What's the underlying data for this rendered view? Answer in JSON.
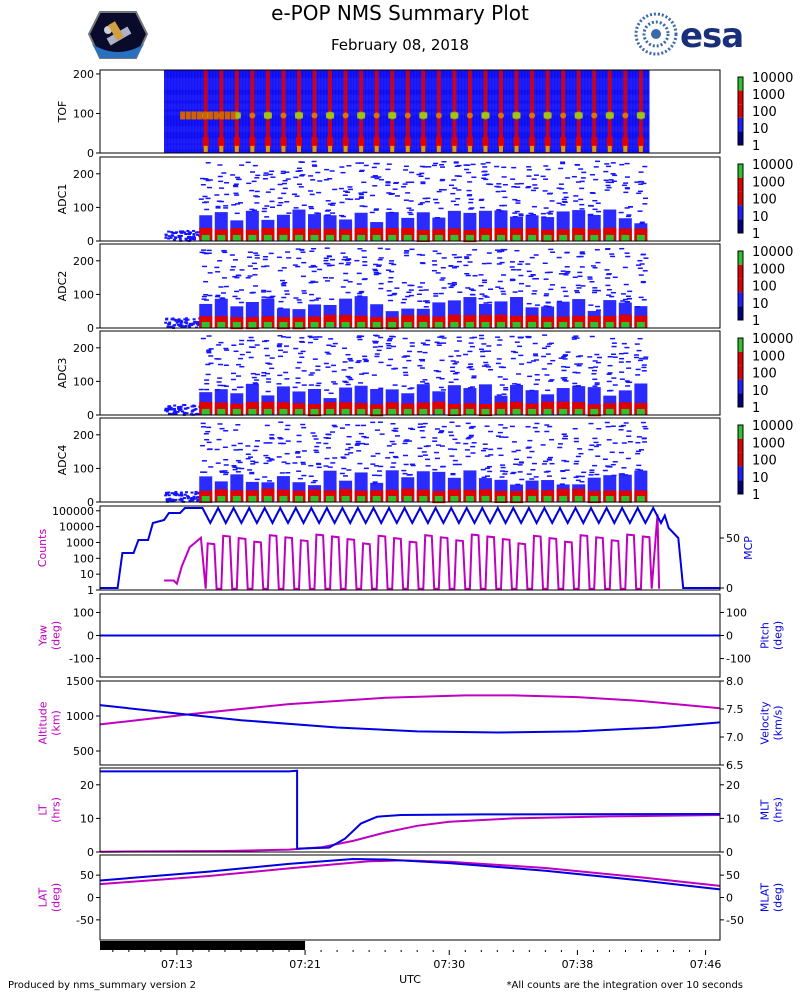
{
  "header": {
    "title": "e-POP NMS Summary Plot",
    "date": "February 08, 2018",
    "left_logo": "mission-patch",
    "right_logo": "esa",
    "right_logo_text": "esa"
  },
  "footer": {
    "left": "Produced by nms_summary version 2",
    "right": "*All counts are the integration over 10 seconds",
    "xlabel": "UTC"
  },
  "colors": {
    "magenta": "#c000c0",
    "blue": "#0000e0",
    "spec_blue": "#1414ff",
    "spec_red": "#e00000",
    "spec_green": "#30c030"
  },
  "colorbar": {
    "labels": [
      "10000",
      "1000",
      "100",
      "10",
      "1"
    ],
    "colors": [
      "#30c030",
      "#e00000",
      "#e00000",
      "#2020ff",
      "#000080"
    ]
  },
  "chart_data": {
    "type": "multi-panel time series",
    "x": {
      "label": "UTC",
      "ticks": [
        "07:13",
        "07:21",
        "07:30",
        "07:38",
        "07:46"
      ],
      "tick_min": [
        13.0,
        21.0,
        30.0,
        38.0,
        46.0
      ],
      "range_min": [
        8.2,
        46.9
      ],
      "data_bar_min": [
        8.2,
        21.0
      ]
    },
    "spectrograms": [
      {
        "name": "TOF",
        "ylabel": "TOF",
        "ylim": [
          0,
          210
        ],
        "yticks": [
          "0",
          "100",
          "200"
        ],
        "yticks_val": [
          0,
          100,
          200
        ],
        "start_min": 12.2,
        "end_min": 42.5
      },
      {
        "name": "ADC1",
        "ylabel": "ADC1",
        "ylim": [
          0,
          250
        ],
        "yticks": [
          "0",
          "100",
          "200"
        ],
        "yticks_val": [
          0,
          100,
          200
        ],
        "start_min": 12.2,
        "end_min": 42.5
      },
      {
        "name": "ADC2",
        "ylabel": "ADC2",
        "ylim": [
          0,
          250
        ],
        "yticks": [
          "0",
          "100",
          "200"
        ],
        "yticks_val": [
          0,
          100,
          200
        ],
        "start_min": 12.2,
        "end_min": 42.5
      },
      {
        "name": "ADC3",
        "ylabel": "ADC3",
        "ylim": [
          0,
          250
        ],
        "yticks": [
          "0",
          "100",
          "200"
        ],
        "yticks_val": [
          0,
          100,
          200
        ],
        "start_min": 12.2,
        "end_min": 42.5
      },
      {
        "name": "ADC4",
        "ylabel": "ADC4",
        "ylim": [
          0,
          250
        ],
        "yticks": [
          "0",
          "100",
          "200"
        ],
        "yticks_val": [
          0,
          100,
          200
        ],
        "start_min": 12.2,
        "end_min": 42.5
      }
    ],
    "line_panels": [
      {
        "name": "counts-mcp",
        "left_label": "Counts",
        "right_label": "MCP",
        "left_scale": "log",
        "left_lim": [
          1,
          200000
        ],
        "left_ticks": [
          "1",
          "10",
          "100",
          "1000",
          "10000",
          "100000"
        ],
        "left_ticks_val": [
          1,
          10,
          100,
          1000,
          10000,
          100000
        ],
        "right_lim": [
          -2,
          82
        ],
        "right_ticks": [
          "0",
          "50"
        ],
        "right_ticks_val": [
          0,
          50
        ],
        "mcp_series": [
          [
            8.2,
            0
          ],
          [
            9.3,
            0
          ],
          [
            9.6,
            35
          ],
          [
            10.3,
            35
          ],
          [
            10.6,
            48
          ],
          [
            11.2,
            48
          ],
          [
            11.5,
            65
          ],
          [
            12.2,
            68
          ],
          [
            12.5,
            75
          ],
          [
            13.2,
            75
          ],
          [
            13.5,
            80
          ],
          [
            14.4,
            80
          ],
          [
            14.6,
            65
          ],
          [
            14.9,
            78
          ],
          [
            15.2,
            78
          ],
          [
            43.5,
            78
          ],
          [
            43.7,
            60
          ],
          [
            44.3,
            50
          ],
          [
            44.6,
            0
          ],
          [
            46.9,
            0
          ]
        ],
        "mcp_osc": {
          "start": 14.6,
          "end": 43.5,
          "period": 0.97,
          "high": 80,
          "low": 65
        },
        "counts_osc": {
          "start": 14.8,
          "end": 42.8,
          "period": 0.97,
          "high": 2500,
          "low": 1.2
        },
        "counts_pre": [
          [
            12.2,
            4
          ],
          [
            12.8,
            4
          ],
          [
            13.0,
            2.5
          ],
          [
            13.3,
            30
          ],
          [
            13.8,
            500
          ],
          [
            14.5,
            2000
          ]
        ]
      },
      {
        "name": "yaw-pitch",
        "left_label": "Yaw (deg)",
        "right_label": "Pitch (deg)",
        "left_lim": [
          -180,
          180
        ],
        "left_ticks": [
          "-100",
          "0",
          "100"
        ],
        "left_ticks_val": [
          -100,
          0,
          100
        ],
        "right_lim": [
          -180,
          180
        ],
        "right_ticks": [
          "-100",
          "0",
          "100"
        ],
        "right_ticks_val": [
          -100,
          0,
          100
        ],
        "yaw": [
          [
            8.2,
            0
          ],
          [
            46.9,
            0
          ]
        ],
        "pitch": [
          [
            8.2,
            0
          ],
          [
            46.9,
            0
          ]
        ]
      },
      {
        "name": "altitude-velocity",
        "left_label": "Altitude (km)",
        "right_label": "Velocity (km/s)",
        "left_lim": [
          300,
          1500
        ],
        "left_ticks": [
          "500",
          "1000",
          "1500"
        ],
        "left_ticks_val": [
          500,
          1000,
          1500
        ],
        "right_lim": [
          6.5,
          8.0
        ],
        "right_ticks": [
          "6.5",
          "7.0",
          "7.5",
          "8.0"
        ],
        "right_ticks_val": [
          6.5,
          7.0,
          7.5,
          8.0
        ],
        "altitude": [
          [
            8.2,
            880
          ],
          [
            14,
            1030
          ],
          [
            20,
            1170
          ],
          [
            26,
            1260
          ],
          [
            31,
            1295
          ],
          [
            34,
            1295
          ],
          [
            38,
            1270
          ],
          [
            42,
            1215
          ],
          [
            46.9,
            1110
          ]
        ],
        "velocity": [
          [
            8.2,
            7.57
          ],
          [
            12,
            7.45
          ],
          [
            17,
            7.3
          ],
          [
            23,
            7.17
          ],
          [
            28,
            7.1
          ],
          [
            33,
            7.08
          ],
          [
            38,
            7.1
          ],
          [
            43,
            7.17
          ],
          [
            46.9,
            7.26
          ]
        ]
      },
      {
        "name": "lt-mlt",
        "left_label": "LT (hrs)",
        "right_label": "MLT (hrs)",
        "left_lim": [
          0,
          25
        ],
        "left_ticks": [
          "0",
          "10",
          "20"
        ],
        "left_ticks_val": [
          0,
          10,
          20
        ],
        "right_lim": [
          0,
          25
        ],
        "right_ticks": [
          "0",
          "10",
          "20"
        ],
        "right_ticks_val": [
          0,
          10,
          20
        ],
        "lt": [
          [
            8.2,
            0.1
          ],
          [
            16,
            0.3
          ],
          [
            20,
            0.7
          ],
          [
            22,
            1.4
          ],
          [
            24,
            3.3
          ],
          [
            26,
            5.8
          ],
          [
            28,
            7.8
          ],
          [
            30,
            9.0
          ],
          [
            34,
            10.0
          ],
          [
            40,
            10.6
          ],
          [
            46.9,
            11.0
          ]
        ],
        "mlt": [
          [
            8.2,
            24.0
          ],
          [
            16,
            24.0
          ],
          [
            20.0,
            24.0
          ],
          [
            20.5,
            24.2
          ],
          [
            20.5,
            1.0
          ],
          [
            22.5,
            1.3
          ],
          [
            23.5,
            4.0
          ],
          [
            24.5,
            8.5
          ],
          [
            25.5,
            10.5
          ],
          [
            27,
            11.0
          ],
          [
            32,
            11.2
          ],
          [
            46.9,
            11.3
          ]
        ]
      },
      {
        "name": "lat-mlat",
        "left_label": "LAT (deg)",
        "right_label": "MLAT (deg)",
        "left_lim": [
          -95,
          95
        ],
        "left_ticks": [
          "-50",
          "0",
          "50"
        ],
        "left_ticks_val": [
          -50,
          0,
          50
        ],
        "right_lim": [
          -95,
          95
        ],
        "right_ticks": [
          "-50",
          "0",
          "50"
        ],
        "right_ticks_val": [
          -50,
          0,
          50
        ],
        "lat": [
          [
            8.2,
            30
          ],
          [
            15,
            48
          ],
          [
            20,
            65
          ],
          [
            25,
            81
          ],
          [
            27,
            83
          ],
          [
            30,
            80
          ],
          [
            36,
            66
          ],
          [
            42,
            45
          ],
          [
            46.9,
            26
          ]
        ],
        "mlat": [
          [
            8.2,
            38
          ],
          [
            15,
            58
          ],
          [
            20,
            75
          ],
          [
            24,
            86
          ],
          [
            26,
            85
          ],
          [
            30,
            77
          ],
          [
            36,
            60
          ],
          [
            42,
            38
          ],
          [
            46.9,
            18
          ]
        ]
      }
    ]
  }
}
